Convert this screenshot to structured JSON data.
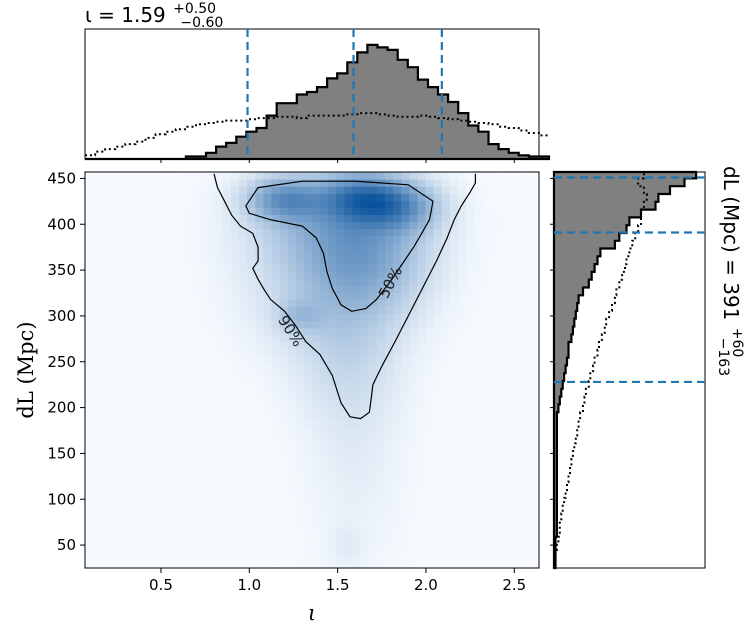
{
  "chart_data": [
    {
      "panel": "top-marginal",
      "type": "histogram",
      "title": {
        "main": "ι = 1.59",
        "sup": "+0.50",
        "sub": "−0.60"
      },
      "x_range": [
        0.07,
        2.64
      ],
      "bins_edges_start": 0.07,
      "bin_width": 0.0571,
      "posterior_counts": [
        0,
        0,
        0,
        0,
        0,
        0,
        0,
        0,
        0,
        0,
        0.02,
        0.02,
        0.05,
        0.1,
        0.13,
        0.18,
        0.22,
        0.25,
        0.35,
        0.45,
        0.45,
        0.52,
        0.54,
        0.58,
        0.65,
        0.69,
        0.78,
        0.86,
        0.92,
        0.9,
        0.88,
        0.8,
        0.74,
        0.64,
        0.58,
        0.52,
        0.46,
        0.37,
        0.27,
        0.22,
        0.12,
        0.08,
        0.05,
        0.03,
        0.02,
        0.02
      ],
      "prior_counts": [
        0.03,
        0.06,
        0.08,
        0.1,
        0.12,
        0.14,
        0.17,
        0.2,
        0.22,
        0.24,
        0.26,
        0.28,
        0.29,
        0.3,
        0.31,
        0.31,
        0.32,
        0.33,
        0.33,
        0.34,
        0.34,
        0.33,
        0.35,
        0.35,
        0.35,
        0.35,
        0.36,
        0.37,
        0.37,
        0.36,
        0.35,
        0.34,
        0.34,
        0.35,
        0.34,
        0.33,
        0.32,
        0.31,
        0.3,
        0.29,
        0.28,
        0.26,
        0.25,
        0.23,
        0.21,
        0.19
      ],
      "quantile_lines": [
        0.99,
        1.59,
        2.09
      ]
    },
    {
      "panel": "joint-density",
      "type": "heatmap",
      "xlabel": "ι",
      "ylabel": "dL (Mpc)",
      "x_range": [
        0.07,
        2.64
      ],
      "y_range": [
        25,
        457
      ],
      "x_ticks": [
        "0.5",
        "1.0",
        "1.5",
        "2.0",
        "2.5"
      ],
      "x_tick_values": [
        0.5,
        1.0,
        1.5,
        2.0,
        2.5
      ],
      "y_ticks": [
        "50",
        "100",
        "150",
        "200",
        "250",
        "300",
        "350",
        "400",
        "450"
      ],
      "y_tick_values": [
        50,
        100,
        150,
        200,
        250,
        300,
        350,
        400,
        450
      ],
      "contours": [
        {
          "label": "50%",
          "points": [
            [
              0.98,
              420
            ],
            [
              1.05,
              440
            ],
            [
              1.3,
              447
            ],
            [
              1.6,
              447
            ],
            [
              1.9,
              443
            ],
            [
              2.04,
              425
            ],
            [
              2.02,
              405
            ],
            [
              1.97,
              388
            ],
            [
              1.93,
              375
            ],
            [
              1.86,
              355
            ],
            [
              1.8,
              338
            ],
            [
              1.72,
              318
            ],
            [
              1.66,
              308
            ],
            [
              1.58,
              305
            ],
            [
              1.52,
              312
            ],
            [
              1.47,
              330
            ],
            [
              1.44,
              348
            ],
            [
              1.42,
              368
            ],
            [
              1.38,
              385
            ],
            [
              1.3,
              398
            ],
            [
              1.12,
              405
            ],
            [
              1.0,
              412
            ]
          ]
        },
        {
          "label": "90%",
          "points": [
            [
              0.8,
              455
            ],
            [
              0.82,
              440
            ],
            [
              0.86,
              425
            ],
            [
              0.9,
              410
            ],
            [
              0.95,
              398
            ],
            [
              1.02,
              390
            ],
            [
              1.05,
              375
            ],
            [
              1.05,
              360
            ],
            [
              1.02,
              352
            ],
            [
              1.05,
              340
            ],
            [
              1.08,
              330
            ],
            [
              1.12,
              318
            ],
            [
              1.2,
              305
            ],
            [
              1.26,
              290
            ],
            [
              1.32,
              272
            ],
            [
              1.4,
              258
            ],
            [
              1.47,
              235
            ],
            [
              1.52,
              205
            ],
            [
              1.57,
              190
            ],
            [
              1.63,
              188
            ],
            [
              1.68,
              195
            ],
            [
              1.69,
              210
            ],
            [
              1.7,
              225
            ],
            [
              1.75,
              245
            ],
            [
              1.82,
              270
            ],
            [
              1.9,
              300
            ],
            [
              1.98,
              330
            ],
            [
              2.06,
              360
            ],
            [
              2.12,
              385
            ],
            [
              2.16,
              405
            ],
            [
              2.2,
              420
            ],
            [
              2.25,
              435
            ],
            [
              2.28,
              445
            ],
            [
              2.28,
              455
            ]
          ]
        }
      ],
      "density_blobs": [
        {
          "x": 1.63,
          "y": 430,
          "sx": 0.16,
          "sy": 18,
          "w": 1.0
        },
        {
          "x": 1.2,
          "y": 428,
          "sx": 0.14,
          "sy": 16,
          "w": 0.85
        },
        {
          "x": 1.85,
          "y": 420,
          "sx": 0.15,
          "sy": 18,
          "w": 0.75
        },
        {
          "x": 1.5,
          "y": 400,
          "sx": 0.3,
          "sy": 35,
          "w": 0.55
        },
        {
          "x": 1.68,
          "y": 360,
          "sx": 0.22,
          "sy": 40,
          "w": 0.45
        },
        {
          "x": 1.45,
          "y": 330,
          "sx": 0.28,
          "sy": 45,
          "w": 0.3
        },
        {
          "x": 1.28,
          "y": 300,
          "sx": 0.08,
          "sy": 12,
          "w": 0.3
        },
        {
          "x": 1.55,
          "y": 260,
          "sx": 0.2,
          "sy": 50,
          "w": 0.2
        },
        {
          "x": 1.6,
          "y": 160,
          "sx": 0.18,
          "sy": 80,
          "w": 0.08
        },
        {
          "x": 1.55,
          "y": 50,
          "sx": 0.06,
          "sy": 15,
          "w": 0.08
        }
      ]
    },
    {
      "panel": "right-marginal",
      "type": "histogram",
      "title": {
        "main": "dL (Mpc) = 391",
        "sup": "+60",
        "sub": "−163"
      },
      "y_range": [
        25,
        457
      ],
      "bins_start": 25,
      "bin_width": 8.5,
      "posterior_counts": [
        0.01,
        0.01,
        0.01,
        0.01,
        0.02,
        0.02,
        0.02,
        0.02,
        0.02,
        0.02,
        0.02,
        0.02,
        0.02,
        0.02,
        0.02,
        0.02,
        0.02,
        0.02,
        0.02,
        0.02,
        0.03,
        0.04,
        0.05,
        0.06,
        0.07,
        0.08,
        0.09,
        0.1,
        0.1,
        0.12,
        0.13,
        0.14,
        0.15,
        0.16,
        0.17,
        0.2,
        0.24,
        0.26,
        0.28,
        0.3,
        0.32,
        0.42,
        0.45,
        0.5,
        0.52,
        0.6,
        0.7,
        0.72,
        0.8,
        0.9,
        0.98
      ],
      "prior_counts": [
        0.0,
        0.01,
        0.02,
        0.03,
        0.04,
        0.04,
        0.05,
        0.06,
        0.07,
        0.08,
        0.09,
        0.1,
        0.11,
        0.12,
        0.13,
        0.14,
        0.15,
        0.16,
        0.17,
        0.18,
        0.2,
        0.21,
        0.22,
        0.24,
        0.25,
        0.27,
        0.28,
        0.3,
        0.31,
        0.33,
        0.35,
        0.36,
        0.38,
        0.4,
        0.42,
        0.43,
        0.45,
        0.47,
        0.49,
        0.5,
        0.52,
        0.54,
        0.56,
        0.58,
        0.6,
        0.6,
        0.62,
        0.64,
        0.62,
        0.58,
        0.62
      ],
      "quantile_lines": [
        228,
        391,
        451
      ]
    }
  ],
  "colors": {
    "hist_fill": "#808080",
    "hist_edge": "#000000",
    "quantile": "#1f77b4",
    "density_low": "#f7fbff",
    "density_high": "#08519c",
    "contour": "#000000"
  }
}
